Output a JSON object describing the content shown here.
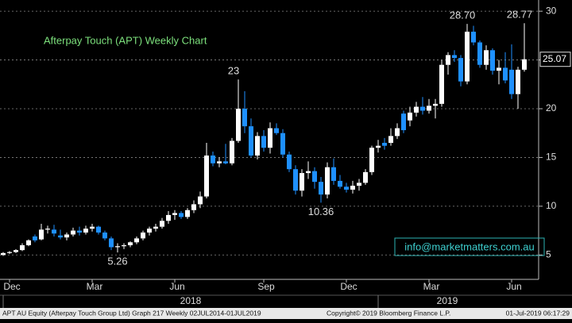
{
  "chart_data": {
    "type": "candlestick",
    "title": "Afterpay Touch (APT) Weekly Chart",
    "watermark": "info@marketmatters.com.au",
    "categories": [
      null,
      "Dec",
      null,
      null,
      null,
      null,
      null,
      null,
      null,
      null,
      null,
      null,
      null,
      null,
      "Mar",
      null,
      null,
      null,
      null,
      null,
      null,
      null,
      null,
      null,
      null,
      null,
      null,
      "Jun",
      null,
      null,
      null,
      null,
      null,
      null,
      null,
      null,
      null,
      null,
      null,
      null,
      null,
      "Sep",
      null,
      null,
      null,
      null,
      null,
      null,
      null,
      null,
      null,
      null,
      null,
      null,
      "Dec",
      null,
      null,
      null,
      null,
      null,
      null,
      null,
      null,
      null,
      null,
      null,
      null,
      "Mar",
      null,
      null,
      null,
      null,
      null,
      null,
      null,
      null,
      null,
      null,
      null,
      null,
      "Jun",
      null,
      null
    ],
    "year_labels": [
      "2018",
      "2019"
    ],
    "open": [
      5.0,
      5.2,
      5.3,
      5.5,
      6.0,
      6.9,
      6.6,
      7.6,
      7.6,
      7.0,
      6.8,
      7.1,
      7.5,
      7.3,
      7.7,
      7.9,
      7.3,
      6.7,
      5.8,
      5.9,
      6.0,
      6.3,
      6.7,
      7.3,
      7.7,
      7.9,
      8.5,
      9.1,
      9.3,
      8.9,
      9.6,
      10.2,
      11.0,
      15.2,
      14.4,
      14.6,
      14.4,
      16.7,
      20.0,
      18.2,
      15.2,
      17.2,
      16.0,
      18.0,
      17.5,
      15.3,
      13.8,
      11.6,
      13.4,
      13.6,
      12.5,
      11.2,
      14.0,
      12.6,
      12.0,
      11.7,
      12.1,
      12.4,
      13.5,
      16.0,
      16.5,
      16.5,
      17.2,
      19.5,
      18.8,
      19.6,
      20.2,
      19.8,
      20.3,
      20.5,
      24.5,
      25.5,
      25.2,
      22.8,
      27.9,
      26.8,
      24.5,
      26.0,
      23.9,
      24.2,
      24.0,
      21.5,
      24.0
    ],
    "high": [
      5.3,
      5.4,
      5.6,
      6.2,
      6.6,
      7.1,
      8.2,
      8.0,
      8.1,
      7.6,
      7.3,
      7.8,
      7.9,
      8.0,
      8.2,
      8.0,
      7.5,
      6.9,
      6.2,
      6.2,
      6.4,
      6.9,
      7.5,
      7.9,
      8.2,
      8.8,
      9.5,
      9.6,
      9.5,
      9.8,
      10.6,
      11.5,
      16.5,
      15.6,
      15.0,
      16.4,
      17.0,
      23,
      21.8,
      19.0,
      17.6,
      17.8,
      18.6,
      18.5,
      17.9,
      15.6,
      14.2,
      13.8,
      14.6,
      14.0,
      13.0,
      14.5,
      14.9,
      13.2,
      12.4,
      12.6,
      12.8,
      13.8,
      16.2,
      16.8,
      17.0,
      18.0,
      18.5,
      19.8,
      20.2,
      20.7,
      21.2,
      21.0,
      21.0,
      25.0,
      25.8,
      26.0,
      25.5,
      28.7,
      28.5,
      27.0,
      26.5,
      26.2,
      25.0,
      25.8,
      26.6,
      24.3,
      28.77
    ],
    "low": [
      4.9,
      5.1,
      5.2,
      5.4,
      5.9,
      6.3,
      6.5,
      7.2,
      6.9,
      6.6,
      6.5,
      6.9,
      7.0,
      7.1,
      7.4,
      7.1,
      6.5,
      5.5,
      5.26,
      5.6,
      5.8,
      6.1,
      6.5,
      7.0,
      7.4,
      7.7,
      8.2,
      8.6,
      8.7,
      8.7,
      9.3,
      9.8,
      10.8,
      14.1,
      14.0,
      14.3,
      14.2,
      16.5,
      17.5,
      15.0,
      14.8,
      15.6,
      15.4,
      17.3,
      15.0,
      13.5,
      11.2,
      11.0,
      12.8,
      11.8,
      10.36,
      10.8,
      12.2,
      11.8,
      11.4,
      11.3,
      11.6,
      12.2,
      13.2,
      15.5,
      15.8,
      16.2,
      16.9,
      17.5,
      18.2,
      19.2,
      19.4,
      19.5,
      19.0,
      20.2,
      23.5,
      24.8,
      22.3,
      22.5,
      26.5,
      24.2,
      24.0,
      23.5,
      22.5,
      22.6,
      21.0,
      20.0,
      23.8
    ],
    "close": [
      5.2,
      5.3,
      5.5,
      6.0,
      6.5,
      6.5,
      7.6,
      7.7,
      7.2,
      6.8,
      7.1,
      7.5,
      7.3,
      7.7,
      7.9,
      7.3,
      6.7,
      5.8,
      5.9,
      6.0,
      6.3,
      6.7,
      7.3,
      7.7,
      7.9,
      8.5,
      9.1,
      9.3,
      8.9,
      9.6,
      10.2,
      11.0,
      15.2,
      14.4,
      14.6,
      14.4,
      16.7,
      20.0,
      18.2,
      15.2,
      17.2,
      16.0,
      18.0,
      17.5,
      15.3,
      13.8,
      11.6,
      13.4,
      13.6,
      12.5,
      11.2,
      14.0,
      12.6,
      12.0,
      11.7,
      12.1,
      12.4,
      13.5,
      16.0,
      16.2,
      16.2,
      17.2,
      18.0,
      17.8,
      19.6,
      20.2,
      19.8,
      20.3,
      20.5,
      24.5,
      25.5,
      25.2,
      22.8,
      27.9,
      26.8,
      24.5,
      26.0,
      23.9,
      24.2,
      22.9,
      21.5,
      24.0,
      25.07
    ],
    "up_color": "#ffffff",
    "down_color": "#1e90ff",
    "ylim": [
      2.5,
      31.15
    ],
    "yticks": [
      5,
      10,
      15,
      20,
      25,
      30
    ],
    "grid": true,
    "annotations": [
      {
        "value": 23,
        "label": "23"
      },
      {
        "value": 5.26,
        "label": "5.26"
      },
      {
        "value": 10.36,
        "label": "10.36"
      },
      {
        "value": 28.7,
        "label": "28.70"
      },
      {
        "value": 28.77,
        "label": "28.77"
      }
    ],
    "last_price": {
      "value": 25.07,
      "label": "25.07"
    }
  },
  "footer": {
    "left": "APT AU Equity (Afterpay Touch Group Ltd) Graph 217  Weekly 02JUL2014-01JUL2019",
    "center": "Copyright© 2019 Bloomberg Finance L.P.",
    "right": "01-Jul-2019 06:17:29"
  }
}
